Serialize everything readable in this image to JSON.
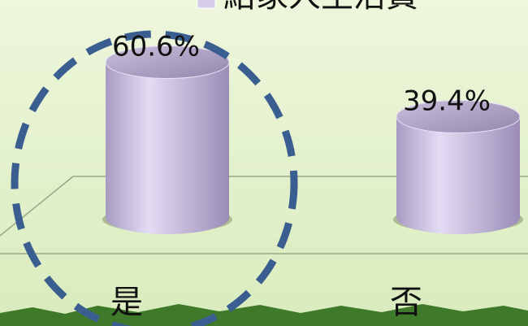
{
  "chart_data": {
    "type": "bar",
    "series": [
      {
        "name": "給家人生活費",
        "color": "#d6cdea",
        "values": [
          60.6,
          39.4
        ],
        "value_labels": [
          "60.6%",
          "39.4%"
        ]
      }
    ],
    "categories": [
      "是",
      "否"
    ]
  }
}
